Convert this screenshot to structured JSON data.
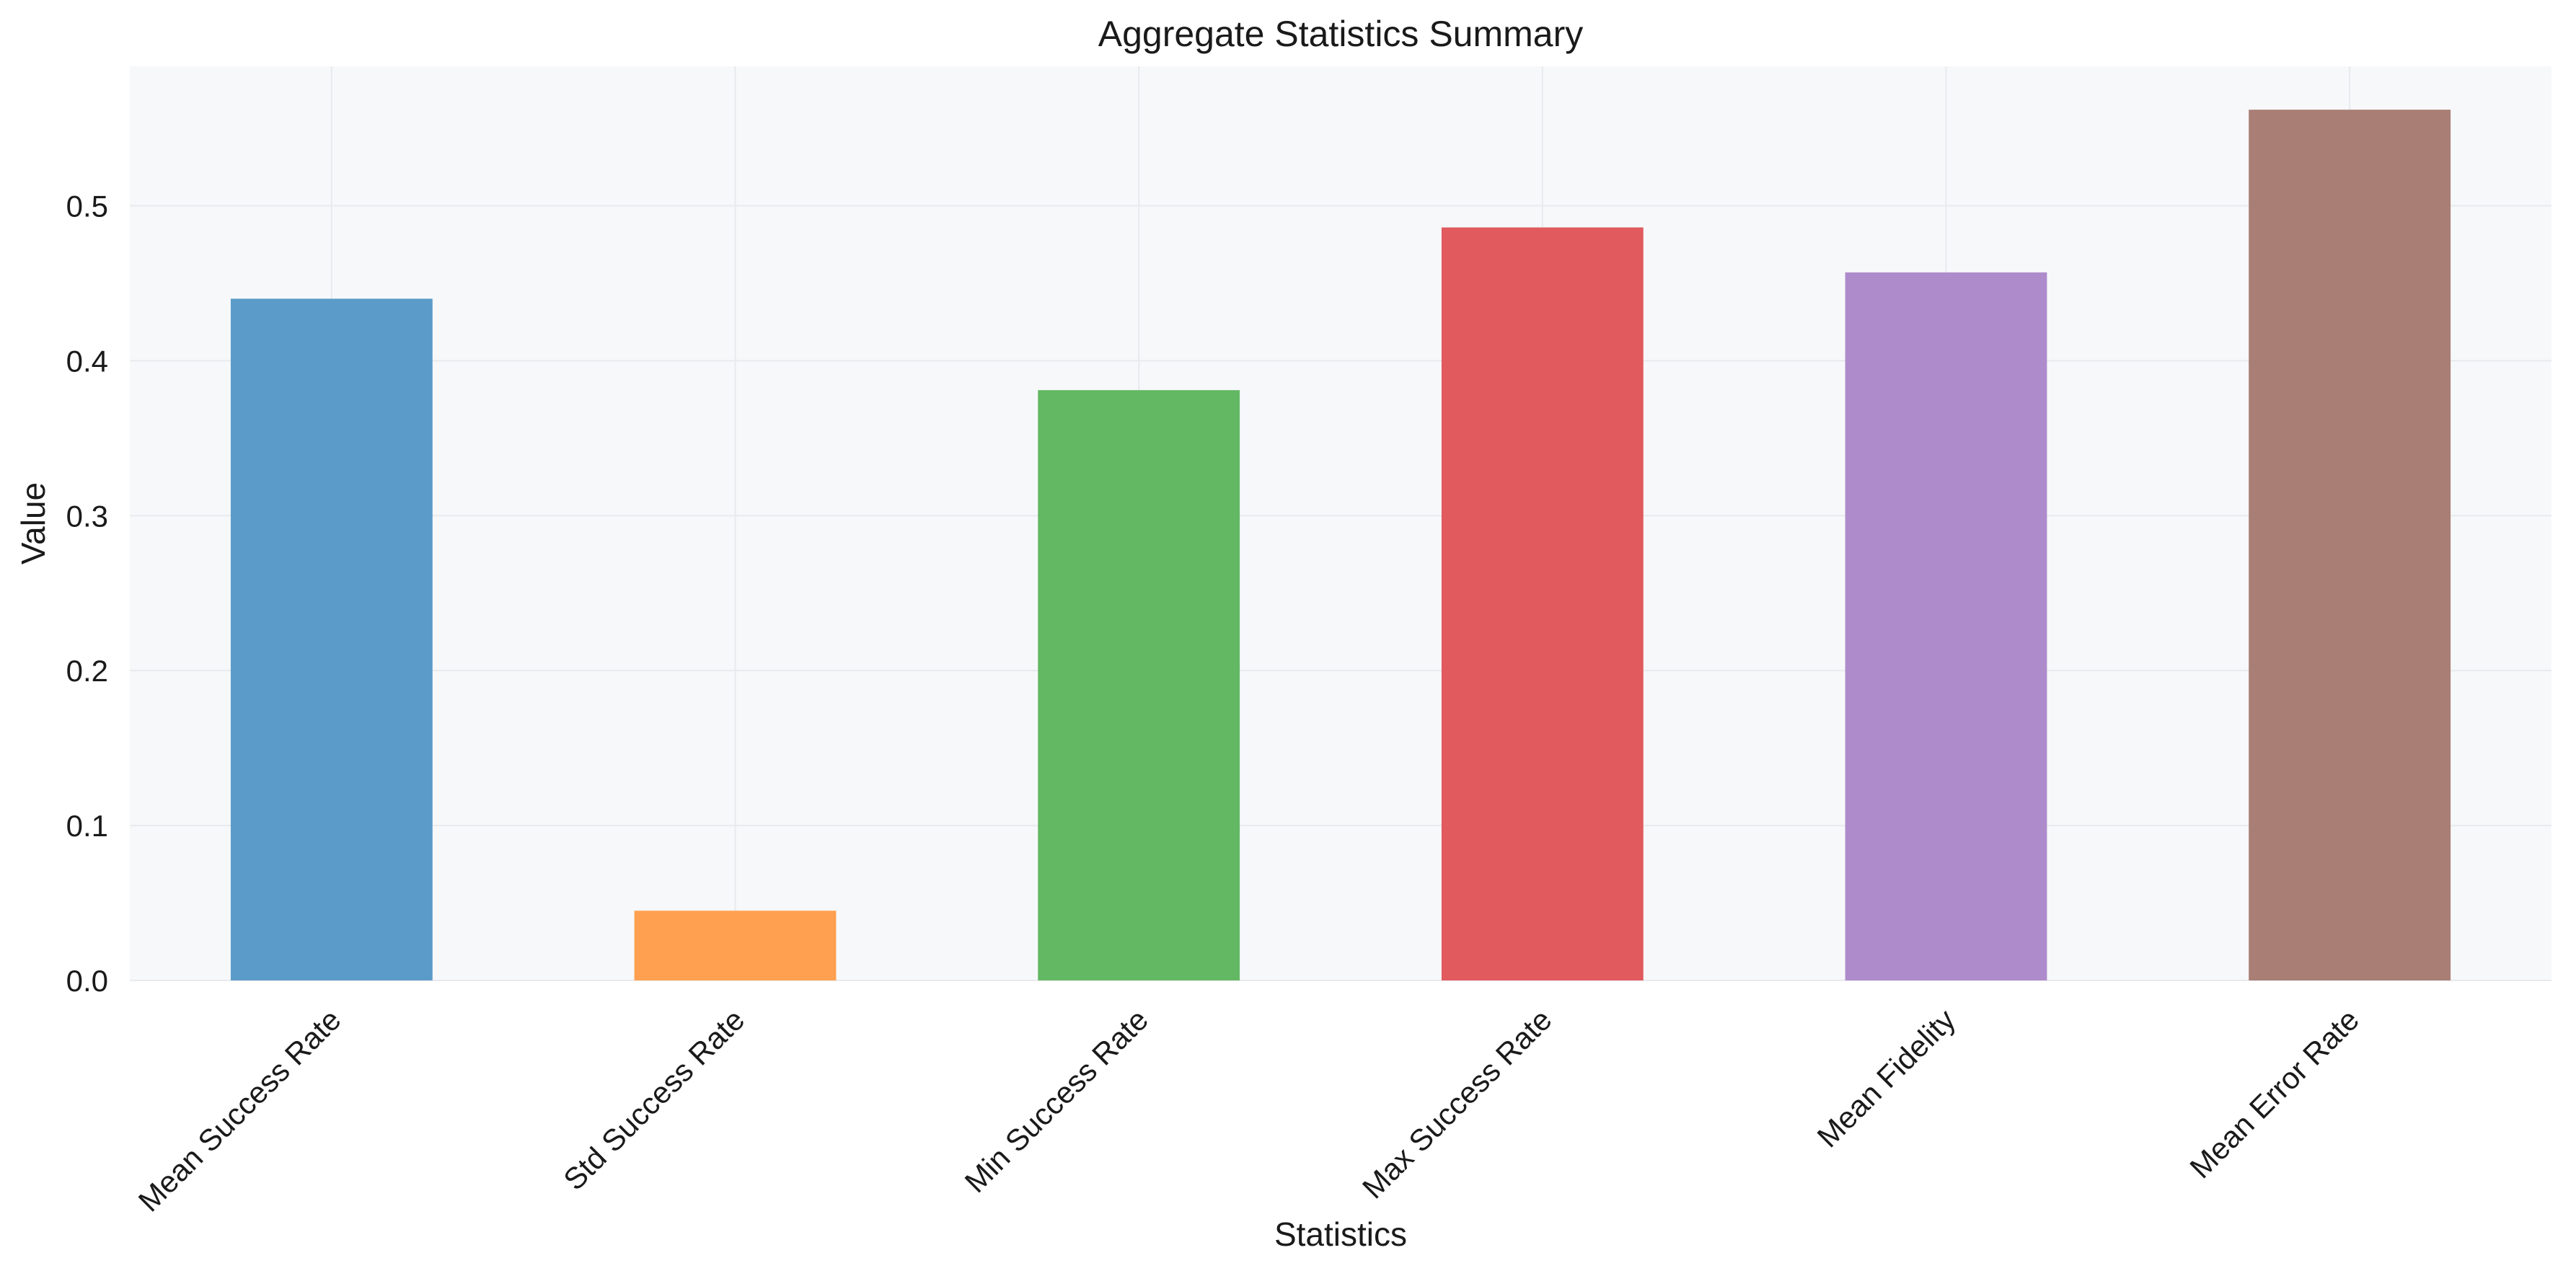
{
  "chart_data": {
    "type": "bar",
    "title": "Aggregate Statistics Summary",
    "xlabel": "Statistics",
    "ylabel": "Value",
    "categories": [
      "Mean Success Rate",
      "Std Success Rate",
      "Min Success Rate",
      "Max Success Rate",
      "Mean Fidelity",
      "Mean Error Rate"
    ],
    "values": [
      0.44,
      0.045,
      0.381,
      0.486,
      0.457,
      0.562
    ],
    "colors": [
      "#5b9bc9",
      "#ffa050",
      "#63b863",
      "#e05a5e",
      "#ae8ccb",
      "#a87e75"
    ],
    "ylim": [
      0,
      0.59
    ],
    "yticks": [
      0.0,
      0.1,
      0.2,
      0.3,
      0.4,
      0.5
    ],
    "ytick_labels": [
      "0.0",
      "0.1",
      "0.2",
      "0.3",
      "0.4",
      "0.5"
    ],
    "grid": true,
    "plot_background": "#f7f8fa",
    "grid_color": "#e8eaee"
  }
}
